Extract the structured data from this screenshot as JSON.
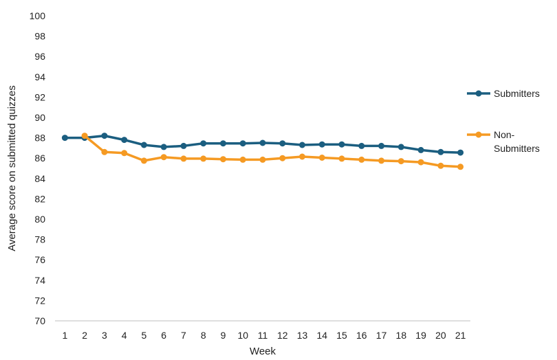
{
  "chart_data": {
    "type": "line",
    "title": "",
    "xlabel": "Week",
    "ylabel": "Average score on  submitted quizzes",
    "ylim": [
      70,
      100
    ],
    "ytick_step": 2,
    "grid": false,
    "legend_position": "right",
    "categories": [
      "1",
      "2",
      "3",
      "4",
      "5",
      "6",
      "7",
      "8",
      "9",
      "10",
      "11",
      "12",
      "13",
      "14",
      "15",
      "16",
      "17",
      "18",
      "19",
      "20",
      "21"
    ],
    "series": [
      {
        "name": "Submitters",
        "color": "#1b5e80",
        "values": [
          88.0,
          88.0,
          88.2,
          87.8,
          87.3,
          87.1,
          87.2,
          87.45,
          87.45,
          87.45,
          87.5,
          87.45,
          87.3,
          87.35,
          87.35,
          87.2,
          87.2,
          87.1,
          86.8,
          86.6,
          86.55
        ]
      },
      {
        "name": "Non-Submitters",
        "name_lines": [
          "Non-",
          "Submitters"
        ],
        "color": "#f59a23",
        "values": [
          null,
          88.2,
          86.6,
          86.5,
          85.75,
          86.1,
          85.95,
          85.95,
          85.9,
          85.85,
          85.85,
          86.0,
          86.15,
          86.05,
          85.95,
          85.85,
          85.75,
          85.7,
          85.6,
          85.25,
          85.15
        ]
      }
    ]
  }
}
